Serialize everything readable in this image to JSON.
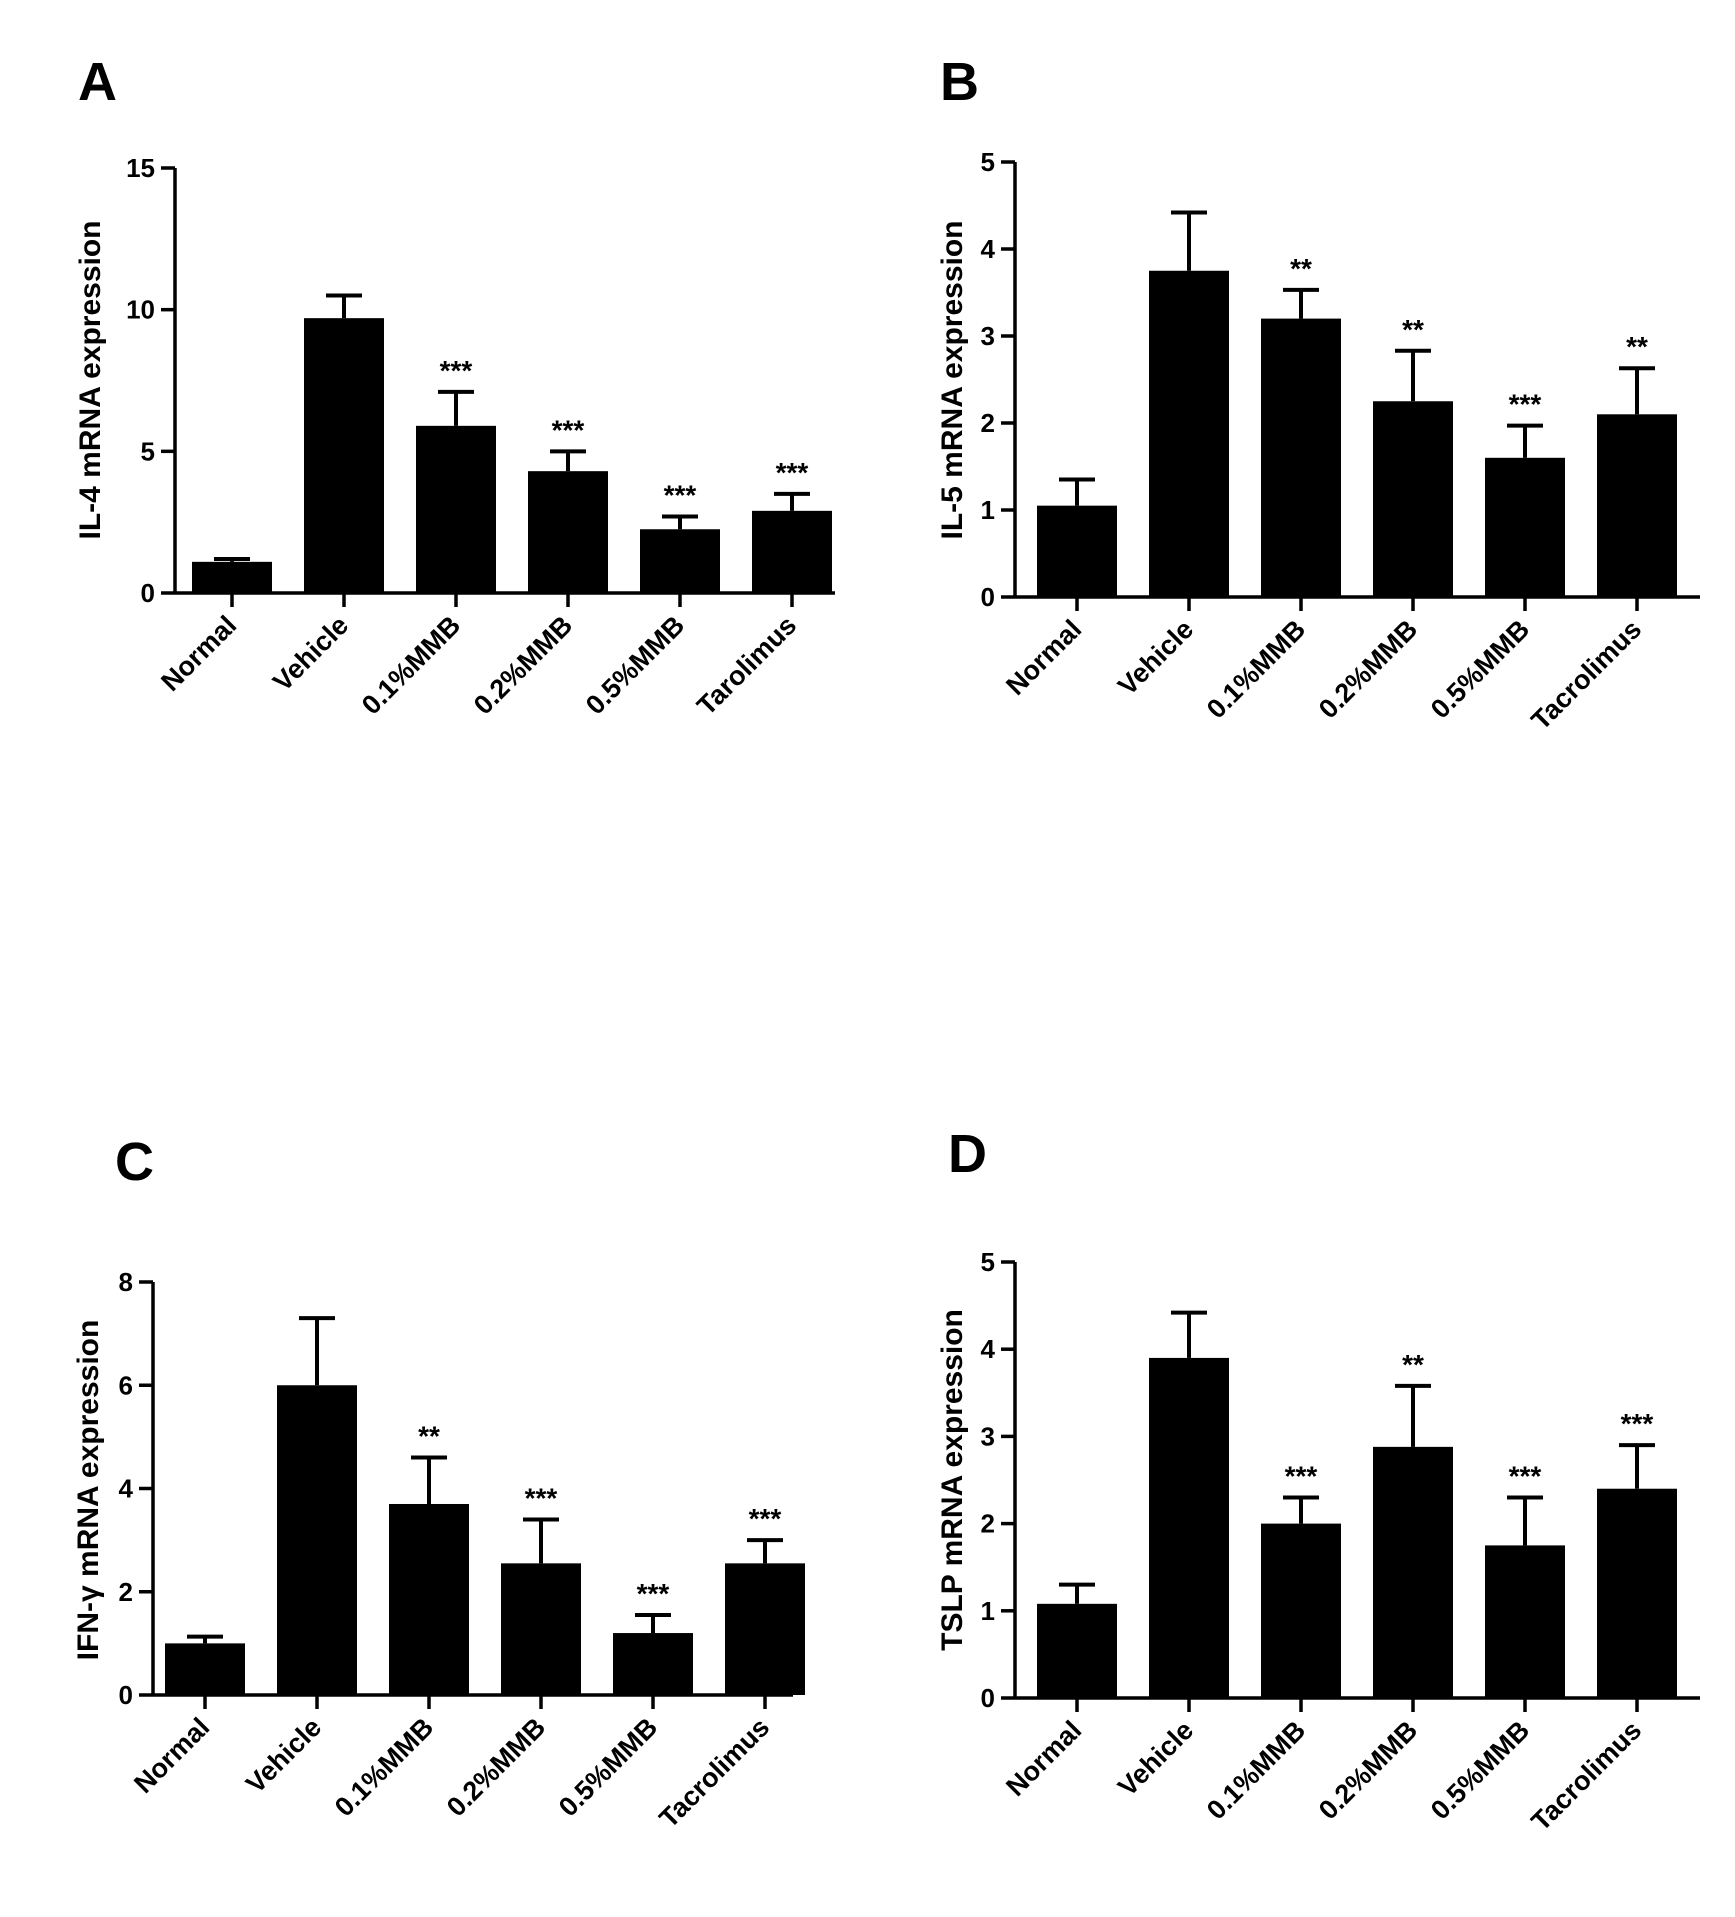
{
  "chart_data": [
    {
      "panel": "A",
      "type": "bar",
      "ylabel": "IL-4 mRNA expression",
      "ylim": [
        0,
        15
      ],
      "yticks": [
        0,
        5,
        10,
        15
      ],
      "categories": [
        "Normal",
        "Vehicle",
        "0.1%MMB",
        "0.2%MMB",
        "0.5%MMB",
        "Tarolimus"
      ],
      "values": [
        1.1,
        9.7,
        5.9,
        4.3,
        2.25,
        2.9
      ],
      "errors": [
        0.1,
        0.8,
        1.2,
        0.7,
        0.45,
        0.6
      ],
      "significance": [
        "",
        "",
        "***",
        "***",
        "***",
        "***"
      ]
    },
    {
      "panel": "B",
      "type": "bar",
      "ylabel": "IL-5 mRNA expression",
      "ylim": [
        0,
        5
      ],
      "yticks": [
        0,
        1,
        2,
        3,
        4,
        5
      ],
      "categories": [
        "Normal",
        "Vehicle",
        "0.1%MMB",
        "0.2%MMB",
        "0.5%MMB",
        "Tacrolimus"
      ],
      "values": [
        1.05,
        3.75,
        3.2,
        2.25,
        1.6,
        2.1
      ],
      "errors": [
        0.3,
        0.67,
        0.33,
        0.58,
        0.37,
        0.53
      ],
      "significance": [
        "",
        "",
        "**",
        "**",
        "***",
        "**"
      ]
    },
    {
      "panel": "C",
      "type": "bar",
      "ylabel": "IFN-γ mRNA expression",
      "ylim": [
        0,
        8
      ],
      "yticks": [
        0,
        2,
        4,
        6,
        8
      ],
      "categories": [
        "Normal",
        "Vehicle",
        "0.1%MMB",
        "0.2%MMB",
        "0.5%MMB",
        "Tacrolimus"
      ],
      "values": [
        1.0,
        6.0,
        3.7,
        2.55,
        1.2,
        2.55
      ],
      "errors": [
        0.13,
        1.3,
        0.9,
        0.85,
        0.35,
        0.45
      ],
      "significance": [
        "",
        "",
        "**",
        "***",
        "***",
        "***"
      ]
    },
    {
      "panel": "D",
      "type": "bar",
      "ylabel": "TSLP mRNA expression",
      "ylim": [
        0,
        5
      ],
      "yticks": [
        0,
        1,
        2,
        3,
        4,
        5
      ],
      "categories": [
        "Normal",
        "Vehicle",
        "0.1%MMB",
        "0.2%MMB",
        "0.5%MMB",
        "Tacrolimus"
      ],
      "values": [
        1.08,
        3.9,
        2.0,
        2.88,
        1.75,
        2.4
      ],
      "errors": [
        0.22,
        0.52,
        0.3,
        0.7,
        0.55,
        0.5
      ],
      "significance": [
        "",
        "",
        "***",
        "**",
        "***",
        "***"
      ]
    }
  ]
}
